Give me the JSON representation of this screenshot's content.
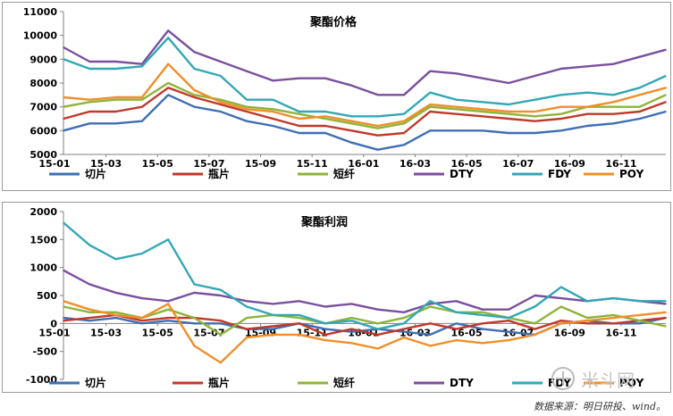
{
  "source_note": "数据来源：明日研投、wind。",
  "watermark": {
    "text": "米斗网"
  },
  "series_colors": [
    "#3f6fb3",
    "#c0392b",
    "#8db43a",
    "#7a4f9e",
    "#33a7b5",
    "#ef8f2a"
  ],
  "chart_data": [
    {
      "type": "line",
      "title": "聚酯价格",
      "x_ticks": [
        "15-01",
        "15-03",
        "15-05",
        "15-07",
        "15-09",
        "15-11",
        "16-01",
        "16-03",
        "16-05",
        "16-07",
        "16-09",
        "16-11"
      ],
      "ylim": [
        5000,
        11000
      ],
      "y_ticks": [
        "5000",
        "6000",
        "7000",
        "8000",
        "9000",
        "10000",
        "11000"
      ],
      "legend": "bottom",
      "grid": false,
      "x": [
        "15-01",
        "15-02",
        "15-03",
        "15-04",
        "15-05",
        "15-06",
        "15-07",
        "15-08",
        "15-09",
        "15-10",
        "15-11",
        "15-12",
        "16-01",
        "16-02",
        "16-03",
        "16-04",
        "16-05",
        "16-06",
        "16-07",
        "16-08",
        "16-09",
        "16-10",
        "16-11",
        "16-12"
      ],
      "series": [
        {
          "name": "切片",
          "values": [
            6000,
            6300,
            6300,
            6400,
            7500,
            7000,
            6800,
            6400,
            6200,
            5900,
            5900,
            5500,
            5200,
            5400,
            6000,
            6000,
            6000,
            5900,
            5900,
            6000,
            6200,
            6300,
            6500,
            6800
          ]
        },
        {
          "name": "瓶片",
          "values": [
            6500,
            6800,
            6800,
            7000,
            7800,
            7400,
            7100,
            6800,
            6500,
            6200,
            6200,
            6000,
            5800,
            5900,
            6800,
            6700,
            6600,
            6500,
            6400,
            6500,
            6700,
            6700,
            6800,
            7200
          ]
        },
        {
          "name": "短纤",
          "values": [
            7000,
            7200,
            7300,
            7300,
            8000,
            7500,
            7300,
            7000,
            6900,
            6700,
            6500,
            6300,
            6100,
            6300,
            7000,
            6900,
            6800,
            6700,
            6600,
            6700,
            7000,
            7000,
            7000,
            7500
          ]
        },
        {
          "name": "DTY",
          "values": [
            9500,
            8900,
            8900,
            8800,
            10200,
            9300,
            8900,
            8500,
            8100,
            8200,
            8200,
            7900,
            7500,
            7500,
            8500,
            8400,
            8200,
            8000,
            8300,
            8600,
            8700,
            8800,
            9100,
            9400
          ]
        },
        {
          "name": "FDY",
          "values": [
            9000,
            8600,
            8600,
            8700,
            9900,
            8600,
            8300,
            7300,
            7300,
            6800,
            6800,
            6600,
            6600,
            6700,
            7600,
            7300,
            7200,
            7100,
            7300,
            7500,
            7600,
            7500,
            7800,
            8300
          ]
        },
        {
          "name": "POY",
          "values": [
            7400,
            7300,
            7400,
            7400,
            8800,
            7700,
            7200,
            6900,
            6800,
            6500,
            6600,
            6400,
            6200,
            6400,
            7100,
            7000,
            6900,
            6800,
            6800,
            7000,
            7000,
            7200,
            7500,
            7800
          ]
        }
      ]
    },
    {
      "type": "line",
      "title": "聚酯利润",
      "x_ticks": [
        "15-01",
        "15-03",
        "15-05",
        "15-07",
        "15-09",
        "15-11",
        "16-01",
        "16-03",
        "16-05",
        "16-07",
        "16-09",
        "16-11"
      ],
      "ylim": [
        -1000,
        2000
      ],
      "y_ticks": [
        "-1000",
        "-500",
        "0",
        "500",
        "1000",
        "1500",
        "2000"
      ],
      "legend": "bottom",
      "grid": false,
      "x": [
        "15-01",
        "15-02",
        "15-03",
        "15-04",
        "15-05",
        "15-06",
        "15-07",
        "15-08",
        "15-09",
        "15-10",
        "15-11",
        "15-12",
        "16-01",
        "16-02",
        "16-03",
        "16-04",
        "16-05",
        "16-06",
        "16-07",
        "16-08",
        "16-09",
        "16-10",
        "16-11",
        "16-12"
      ],
      "series": [
        {
          "name": "切片",
          "values": [
            100,
            50,
            100,
            0,
            50,
            0,
            0,
            -100,
            -100,
            0,
            -100,
            -150,
            -100,
            -150,
            -200,
            0,
            -100,
            -150,
            -200,
            0,
            50,
            0,
            0,
            100
          ]
        },
        {
          "name": "瓶片",
          "values": [
            50,
            100,
            150,
            50,
            100,
            100,
            50,
            -100,
            -50,
            0,
            -200,
            -100,
            -200,
            -100,
            0,
            -100,
            0,
            50,
            -100,
            50,
            0,
            0,
            50,
            100
          ]
        },
        {
          "name": "短纤",
          "values": [
            300,
            200,
            200,
            100,
            250,
            100,
            -200,
            100,
            150,
            100,
            0,
            100,
            0,
            100,
            300,
            200,
            200,
            100,
            0,
            300,
            100,
            150,
            50,
            -50
          ]
        },
        {
          "name": "DTY",
          "values": [
            950,
            700,
            550,
            450,
            400,
            550,
            500,
            400,
            350,
            400,
            300,
            350,
            250,
            200,
            350,
            400,
            250,
            250,
            500,
            450,
            400,
            450,
            400,
            350
          ]
        },
        {
          "name": "FDY",
          "values": [
            1800,
            1400,
            1150,
            1250,
            1500,
            700,
            600,
            300,
            150,
            150,
            0,
            50,
            -100,
            0,
            400,
            200,
            150,
            100,
            300,
            650,
            400,
            450,
            400,
            400
          ]
        },
        {
          "name": "POY",
          "values": [
            400,
            250,
            150,
            100,
            350,
            -400,
            -700,
            -250,
            -200,
            -200,
            -300,
            -350,
            -450,
            -250,
            -400,
            -300,
            -350,
            -300,
            -200,
            0,
            50,
            100,
            150,
            200
          ]
        }
      ]
    }
  ]
}
